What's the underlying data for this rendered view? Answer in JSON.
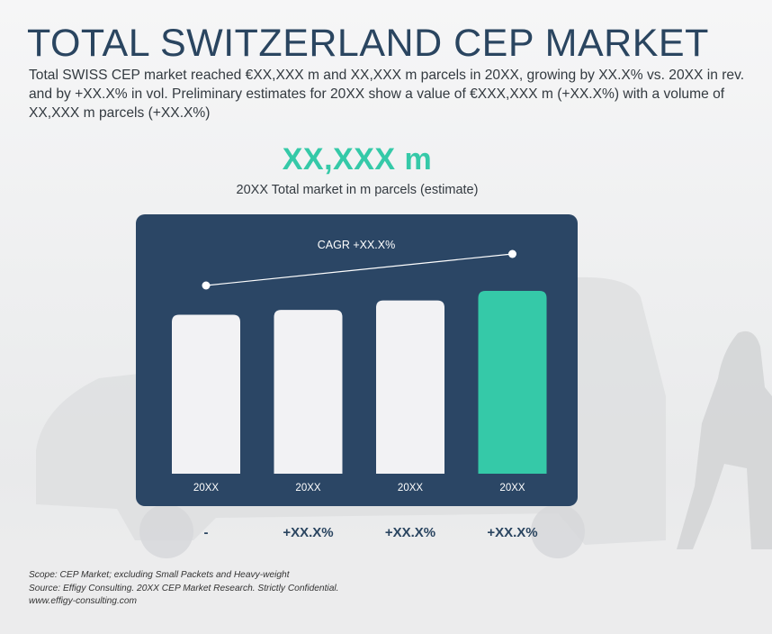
{
  "header": {
    "title": "TOTAL SWITZERLAND CEP MARKET",
    "subtitle": "Total SWISS CEP market reached €XX,XXX m and XX,XXX m parcels in 20XX, growing by XX.X% vs. 20XX in rev. and by +XX.X% in vol. Preliminary estimates for 20XX show a value of €XXX,XXX m (+XX.X%) with a volume of XX,XXX m parcels (+XX.X%)"
  },
  "kpi": {
    "value": "XX,XXX m",
    "label": "20XX Total market in m parcels (estimate)"
  },
  "chart_data": {
    "type": "bar",
    "categories": [
      "20XX",
      "20XX",
      "20XX",
      "20XX"
    ],
    "values": [
      100,
      103,
      109,
      115
    ],
    "value_unit": "relative index (no numeric axis shown)",
    "highlight_index": 3,
    "trend_annotation": "CAGR +XX.X%",
    "growth_labels": [
      "-",
      "+XX.X%",
      "+XX.X%",
      "+XX.X%"
    ],
    "ylim": [
      0,
      115
    ],
    "grid": false,
    "colors": {
      "panel": "#2b4665",
      "bar": "#f2f2f4",
      "highlight": "#35c9a8",
      "trend_line": "#ffffff",
      "category_text": "#ffffff"
    }
  },
  "footer": {
    "scope": "Scope: CEP Market; excluding Small Packets and Heavy-weight",
    "source": "Source: Effigy Consulting. 20XX CEP Market Research. Strictly Confidential.",
    "website": "www.effigy-consulting.com"
  }
}
